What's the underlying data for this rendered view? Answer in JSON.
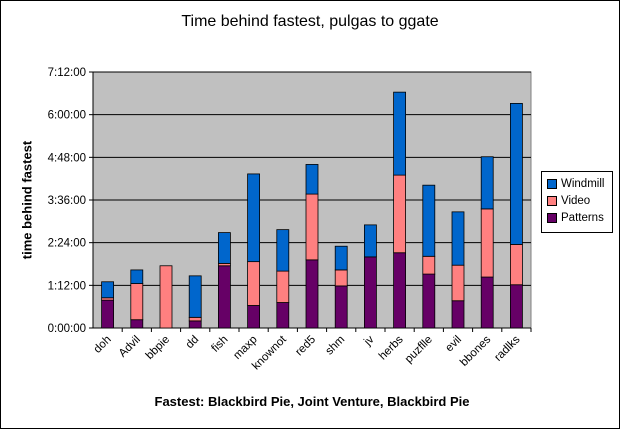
{
  "chart_data": {
    "type": "bar",
    "stacked": true,
    "title": "Time behind fastest, pulgas to ggate",
    "xlabel": "Fastest: Blackbird Pie, Joint Venture, Blackbird Pie",
    "ylabel": "time behind fastest",
    "y_unit": "minutes",
    "ylim": [
      0,
      432
    ],
    "y_ticks": [
      0,
      72,
      144,
      216,
      288,
      360,
      432
    ],
    "y_tick_labels": [
      "0:00:00",
      "1:12:00",
      "2:24:00",
      "3:36:00",
      "4:48:00",
      "6:00:00",
      "7:12:00"
    ],
    "grid": true,
    "plot_background": "#c0c0c0",
    "legend_position": "right",
    "categories": [
      "doh",
      "Advil",
      "bbpie",
      "dd",
      "fish",
      "maxp",
      "knownot",
      "red5",
      "shm",
      "jv",
      "herbs",
      "puzflle",
      "evil",
      "bbones",
      "radlks"
    ],
    "series": [
      {
        "name": "Patterns",
        "color": "#660066",
        "values": [
          47,
          14,
          0,
          12,
          105,
          38,
          43,
          115,
          71,
          120,
          127,
          91,
          46,
          86,
          73
        ]
      },
      {
        "name": "Video",
        "color": "#ff8080",
        "values": [
          4,
          61,
          105,
          6,
          4,
          74,
          53,
          111,
          27,
          0,
          131,
          30,
          60,
          115,
          68
        ]
      },
      {
        "name": "Windmill",
        "color": "#0066cc",
        "values": [
          27,
          23,
          0,
          70,
          52,
          148,
          70,
          50,
          40,
          54,
          140,
          120,
          90,
          88,
          238
        ]
      }
    ]
  }
}
